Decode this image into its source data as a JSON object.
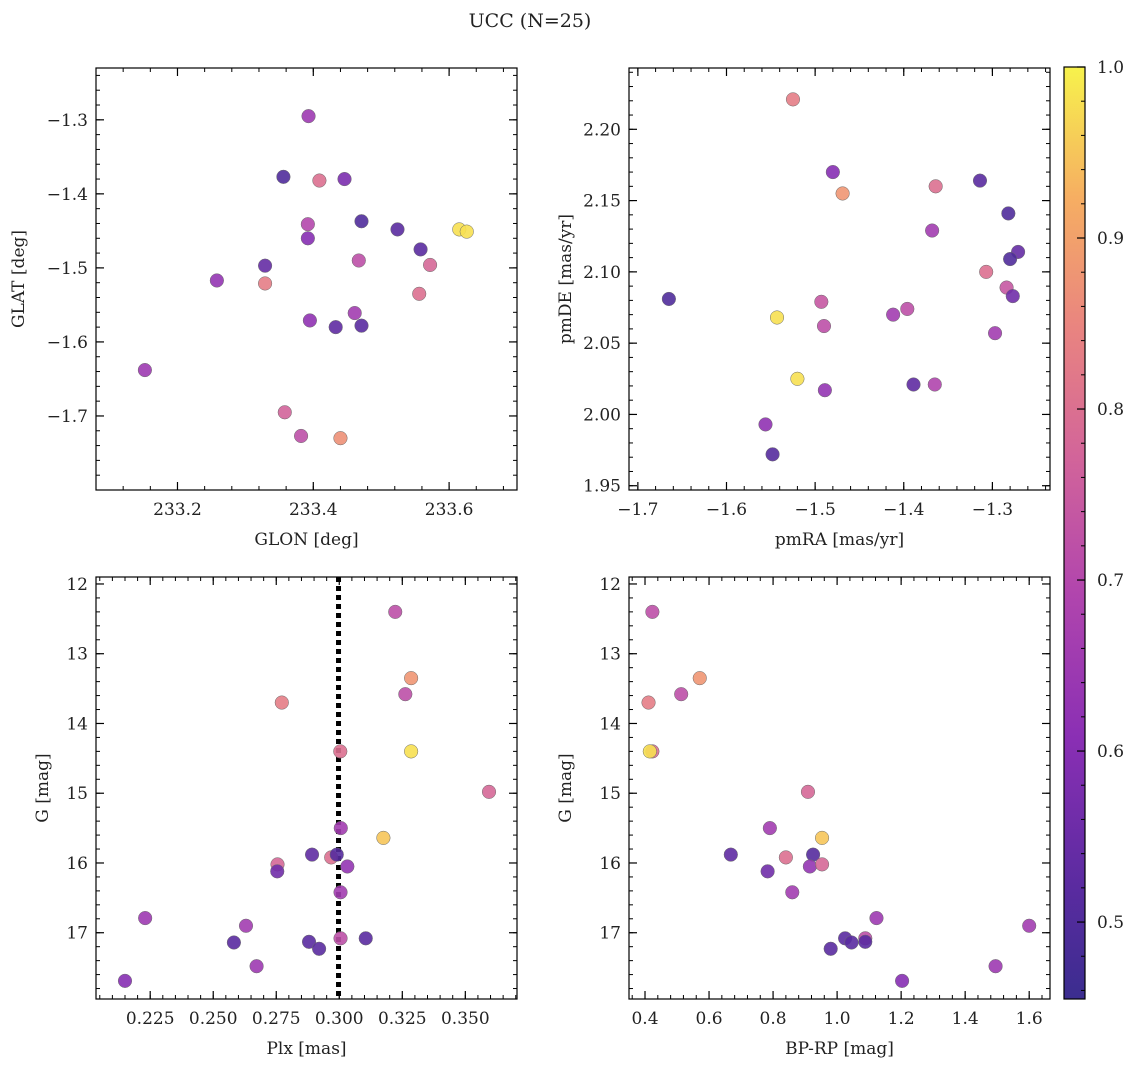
{
  "suptitle": "UCC (N=25)",
  "colorbar": {
    "min": 0.455,
    "max": 1.0,
    "ticks": [
      0.5,
      0.6,
      0.7,
      0.8,
      0.9,
      1.0
    ],
    "tick_labels": [
      "0.5",
      "0.6",
      "0.7",
      "0.8",
      "0.9",
      "1.0"
    ],
    "colormap": "plasma"
  },
  "chart_data": [
    {
      "type": "scatter",
      "xlabel": "GLON [deg]",
      "ylabel": "GLAT [deg]",
      "xlim": [
        233.08,
        233.7
      ],
      "ylim": [
        -1.8,
        -1.23
      ],
      "xticks": [
        233.2,
        233.4,
        233.6
      ],
      "xtick_labels": [
        "233.2",
        "233.4",
        "233.6"
      ],
      "yticks": [
        -1.3,
        -1.4,
        -1.5,
        -1.6,
        -1.7
      ],
      "ytick_labels": [
        "−1.3",
        "−1.4",
        "−1.5",
        "−1.6",
        "−1.7"
      ],
      "points": [
        {
          "x": 233.393,
          "y": -1.295,
          "c": 0.65
        },
        {
          "x": 233.356,
          "y": -1.377,
          "c": 0.5
        },
        {
          "x": 233.409,
          "y": -1.382,
          "c": 0.8
        },
        {
          "x": 233.446,
          "y": -1.38,
          "c": 0.58
        },
        {
          "x": 233.615,
          "y": -1.448,
          "c": 0.98
        },
        {
          "x": 233.626,
          "y": -1.451,
          "c": 0.98
        },
        {
          "x": 233.471,
          "y": -1.437,
          "c": 0.5
        },
        {
          "x": 233.524,
          "y": -1.448,
          "c": 0.52
        },
        {
          "x": 233.392,
          "y": -1.441,
          "c": 0.7
        },
        {
          "x": 233.392,
          "y": -1.46,
          "c": 0.6
        },
        {
          "x": 233.558,
          "y": -1.475,
          "c": 0.52
        },
        {
          "x": 233.329,
          "y": -1.497,
          "c": 0.54
        },
        {
          "x": 233.467,
          "y": -1.49,
          "c": 0.72
        },
        {
          "x": 233.572,
          "y": -1.496,
          "c": 0.78
        },
        {
          "x": 233.258,
          "y": -1.517,
          "c": 0.63
        },
        {
          "x": 233.329,
          "y": -1.521,
          "c": 0.83
        },
        {
          "x": 233.556,
          "y": -1.535,
          "c": 0.8
        },
        {
          "x": 233.461,
          "y": -1.561,
          "c": 0.66
        },
        {
          "x": 233.395,
          "y": -1.571,
          "c": 0.62
        },
        {
          "x": 233.433,
          "y": -1.58,
          "c": 0.53
        },
        {
          "x": 233.471,
          "y": -1.578,
          "c": 0.52
        },
        {
          "x": 233.152,
          "y": -1.638,
          "c": 0.65
        },
        {
          "x": 233.358,
          "y": -1.695,
          "c": 0.77
        },
        {
          "x": 233.382,
          "y": -1.727,
          "c": 0.72
        },
        {
          "x": 233.44,
          "y": -1.73,
          "c": 0.87
        }
      ]
    },
    {
      "type": "scatter",
      "xlabel": "pmRA [mas/yr]",
      "ylabel": "pmDE [mas/yr]",
      "xlim": [
        -1.71,
        -1.235
      ],
      "ylim": [
        1.947,
        2.243
      ],
      "xticks": [
        -1.7,
        -1.6,
        -1.5,
        -1.4,
        -1.3
      ],
      "xtick_labels": [
        "−1.7",
        "−1.6",
        "−1.5",
        "−1.4",
        "−1.3"
      ],
      "yticks": [
        1.95,
        2.0,
        2.05,
        2.1,
        2.15,
        2.2
      ],
      "ytick_labels": [
        "1.95",
        "2.00",
        "2.05",
        "2.10",
        "2.15",
        "2.20"
      ],
      "points": [
        {
          "x": -1.525,
          "y": 2.221,
          "c": 0.83
        },
        {
          "x": -1.48,
          "y": 2.17,
          "c": 0.6
        },
        {
          "x": -1.469,
          "y": 2.155,
          "c": 0.88
        },
        {
          "x": -1.364,
          "y": 2.16,
          "c": 0.8
        },
        {
          "x": -1.314,
          "y": 2.164,
          "c": 0.52
        },
        {
          "x": -1.282,
          "y": 2.141,
          "c": 0.5
        },
        {
          "x": -1.368,
          "y": 2.129,
          "c": 0.66
        },
        {
          "x": -1.271,
          "y": 2.114,
          "c": 0.54
        },
        {
          "x": -1.28,
          "y": 2.109,
          "c": 0.5
        },
        {
          "x": -1.307,
          "y": 2.1,
          "c": 0.8
        },
        {
          "x": -1.284,
          "y": 2.089,
          "c": 0.74
        },
        {
          "x": -1.277,
          "y": 2.083,
          "c": 0.56
        },
        {
          "x": -1.665,
          "y": 2.081,
          "c": 0.5
        },
        {
          "x": -1.493,
          "y": 2.079,
          "c": 0.74
        },
        {
          "x": -1.396,
          "y": 2.074,
          "c": 0.72
        },
        {
          "x": -1.412,
          "y": 2.07,
          "c": 0.66
        },
        {
          "x": -1.543,
          "y": 2.068,
          "c": 0.98
        },
        {
          "x": -1.49,
          "y": 2.062,
          "c": 0.72
        },
        {
          "x": -1.297,
          "y": 2.057,
          "c": 0.66
        },
        {
          "x": -1.52,
          "y": 2.025,
          "c": 0.98
        },
        {
          "x": -1.389,
          "y": 2.021,
          "c": 0.53
        },
        {
          "x": -1.365,
          "y": 2.021,
          "c": 0.69
        },
        {
          "x": -1.489,
          "y": 2.017,
          "c": 0.63
        },
        {
          "x": -1.556,
          "y": 1.993,
          "c": 0.62
        },
        {
          "x": -1.548,
          "y": 1.972,
          "c": 0.51
        }
      ]
    },
    {
      "type": "scatter",
      "xlabel": "Plx [mas]",
      "ylabel": "G [mag]",
      "xlim": [
        0.2035,
        0.3705
      ],
      "ylim": [
        17.95,
        11.9
      ],
      "xticks": [
        0.225,
        0.25,
        0.275,
        0.3,
        0.325,
        0.35
      ],
      "xtick_labels": [
        "0.225",
        "0.250",
        "0.275",
        "0.300",
        "0.325",
        "0.350"
      ],
      "yticks": [
        12,
        13,
        14,
        15,
        16,
        17
      ],
      "ytick_labels": [
        "12",
        "13",
        "14",
        "15",
        "16",
        "17"
      ],
      "vline": 0.2997,
      "points": [
        {
          "x": 0.3222,
          "y": 12.4,
          "c": 0.72
        },
        {
          "x": 0.3285,
          "y": 13.35,
          "c": 0.88
        },
        {
          "x": 0.3262,
          "y": 13.58,
          "c": 0.72
        },
        {
          "x": 0.2772,
          "y": 13.7,
          "c": 0.83
        },
        {
          "x": 0.3004,
          "y": 14.4,
          "c": 0.8
        },
        {
          "x": 0.3285,
          "y": 14.4,
          "c": 0.98
        },
        {
          "x": 0.3594,
          "y": 14.98,
          "c": 0.78
        },
        {
          "x": 0.3006,
          "y": 15.5,
          "c": 0.66
        },
        {
          "x": 0.3175,
          "y": 15.64,
          "c": 0.95
        },
        {
          "x": 0.2892,
          "y": 15.88,
          "c": 0.53
        },
        {
          "x": 0.2968,
          "y": 15.92,
          "c": 0.8
        },
        {
          "x": 0.299,
          "y": 15.88,
          "c": 0.51
        },
        {
          "x": 0.3032,
          "y": 16.05,
          "c": 0.63
        },
        {
          "x": 0.2755,
          "y": 16.02,
          "c": 0.78
        },
        {
          "x": 0.2754,
          "y": 16.12,
          "c": 0.56
        },
        {
          "x": 0.3005,
          "y": 16.42,
          "c": 0.66
        },
        {
          "x": 0.223,
          "y": 16.79,
          "c": 0.65
        },
        {
          "x": 0.263,
          "y": 16.9,
          "c": 0.66
        },
        {
          "x": 0.3005,
          "y": 17.08,
          "c": 0.72
        },
        {
          "x": 0.3105,
          "y": 17.08,
          "c": 0.52
        },
        {
          "x": 0.2582,
          "y": 17.14,
          "c": 0.52
        },
        {
          "x": 0.288,
          "y": 17.13,
          "c": 0.52
        },
        {
          "x": 0.292,
          "y": 17.23,
          "c": 0.52
        },
        {
          "x": 0.2672,
          "y": 17.48,
          "c": 0.65
        },
        {
          "x": 0.215,
          "y": 17.69,
          "c": 0.6
        }
      ]
    },
    {
      "type": "scatter",
      "xlabel": "BP-RP [mag]",
      "ylabel": "G [mag]",
      "xlim": [
        0.35,
        1.665
      ],
      "ylim": [
        17.95,
        11.9
      ],
      "xticks": [
        0.4,
        0.6,
        0.8,
        1.0,
        1.2,
        1.4,
        1.6
      ],
      "xtick_labels": [
        "0.4",
        "0.6",
        "0.8",
        "1.0",
        "1.2",
        "1.4",
        "1.6"
      ],
      "yticks": [
        12,
        13,
        14,
        15,
        16,
        17
      ],
      "ytick_labels": [
        "12",
        "13",
        "14",
        "15",
        "16",
        "17"
      ],
      "points": [
        {
          "x": 0.423,
          "y": 12.4,
          "c": 0.72
        },
        {
          "x": 0.571,
          "y": 13.35,
          "c": 0.88
        },
        {
          "x": 0.513,
          "y": 13.58,
          "c": 0.72
        },
        {
          "x": 0.411,
          "y": 13.7,
          "c": 0.83
        },
        {
          "x": 0.423,
          "y": 14.4,
          "c": 0.8
        },
        {
          "x": 0.415,
          "y": 14.4,
          "c": 0.98
        },
        {
          "x": 0.909,
          "y": 14.98,
          "c": 0.78
        },
        {
          "x": 0.79,
          "y": 15.5,
          "c": 0.66
        },
        {
          "x": 0.953,
          "y": 15.64,
          "c": 0.95
        },
        {
          "x": 0.668,
          "y": 15.88,
          "c": 0.53
        },
        {
          "x": 0.84,
          "y": 15.92,
          "c": 0.8
        },
        {
          "x": 0.925,
          "y": 15.88,
          "c": 0.51
        },
        {
          "x": 0.915,
          "y": 16.05,
          "c": 0.63
        },
        {
          "x": 0.953,
          "y": 16.02,
          "c": 0.78
        },
        {
          "x": 0.783,
          "y": 16.12,
          "c": 0.56
        },
        {
          "x": 0.86,
          "y": 16.42,
          "c": 0.66
        },
        {
          "x": 1.123,
          "y": 16.79,
          "c": 0.65
        },
        {
          "x": 1.6,
          "y": 16.9,
          "c": 0.66
        },
        {
          "x": 1.088,
          "y": 17.08,
          "c": 0.72
        },
        {
          "x": 1.025,
          "y": 17.08,
          "c": 0.52
        },
        {
          "x": 1.045,
          "y": 17.14,
          "c": 0.52
        },
        {
          "x": 1.088,
          "y": 17.13,
          "c": 0.52
        },
        {
          "x": 0.98,
          "y": 17.23,
          "c": 0.52
        },
        {
          "x": 1.495,
          "y": 17.48,
          "c": 0.65
        },
        {
          "x": 1.203,
          "y": 17.69,
          "c": 0.6
        }
      ]
    }
  ]
}
